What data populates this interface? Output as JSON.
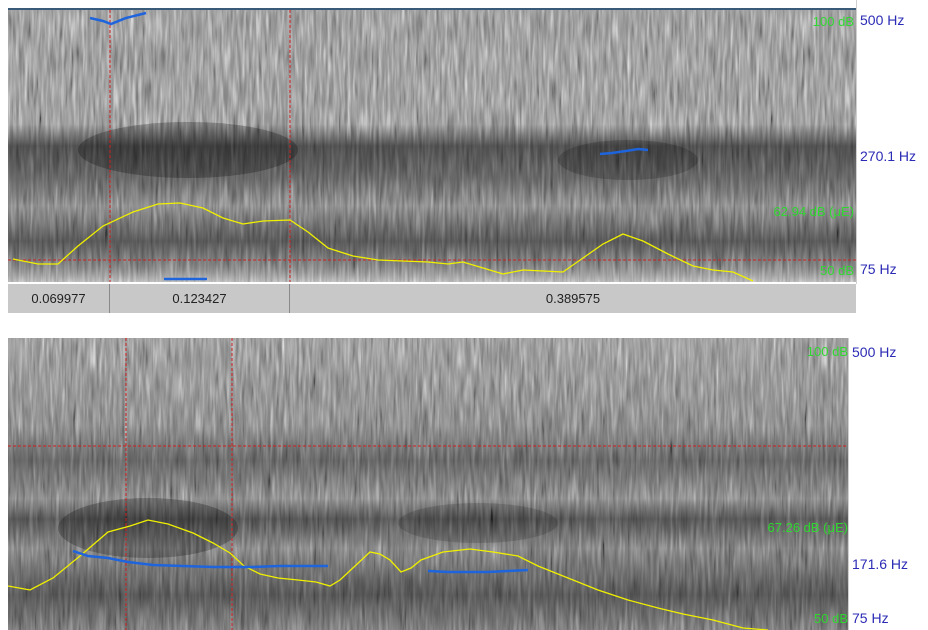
{
  "panel_top": {
    "freq_labels": {
      "max": "500 Hz",
      "mid": "270.1 Hz",
      "min": "75 Hz"
    },
    "intensity_labels": {
      "max": "100 dB",
      "mid": "62.94 dB (μE)",
      "min": "50 dB"
    },
    "selection": {
      "left": "0.069977",
      "center": "0.123427",
      "right": "0.389575"
    }
  },
  "panel_bottom": {
    "freq_labels": {
      "max": "500 Hz",
      "mid": "171.6 Hz",
      "min": "75 Hz"
    },
    "intensity_labels": {
      "max": "100 dB",
      "mid": "67.26 dB (μE)",
      "min": "50 dB"
    }
  },
  "colors": {
    "intensity": "#f0f000",
    "pitch": "#1e64dc",
    "cursor": "#d02020",
    "freq_label": "#2b2bb5",
    "db_label": "#2fd82f"
  }
}
